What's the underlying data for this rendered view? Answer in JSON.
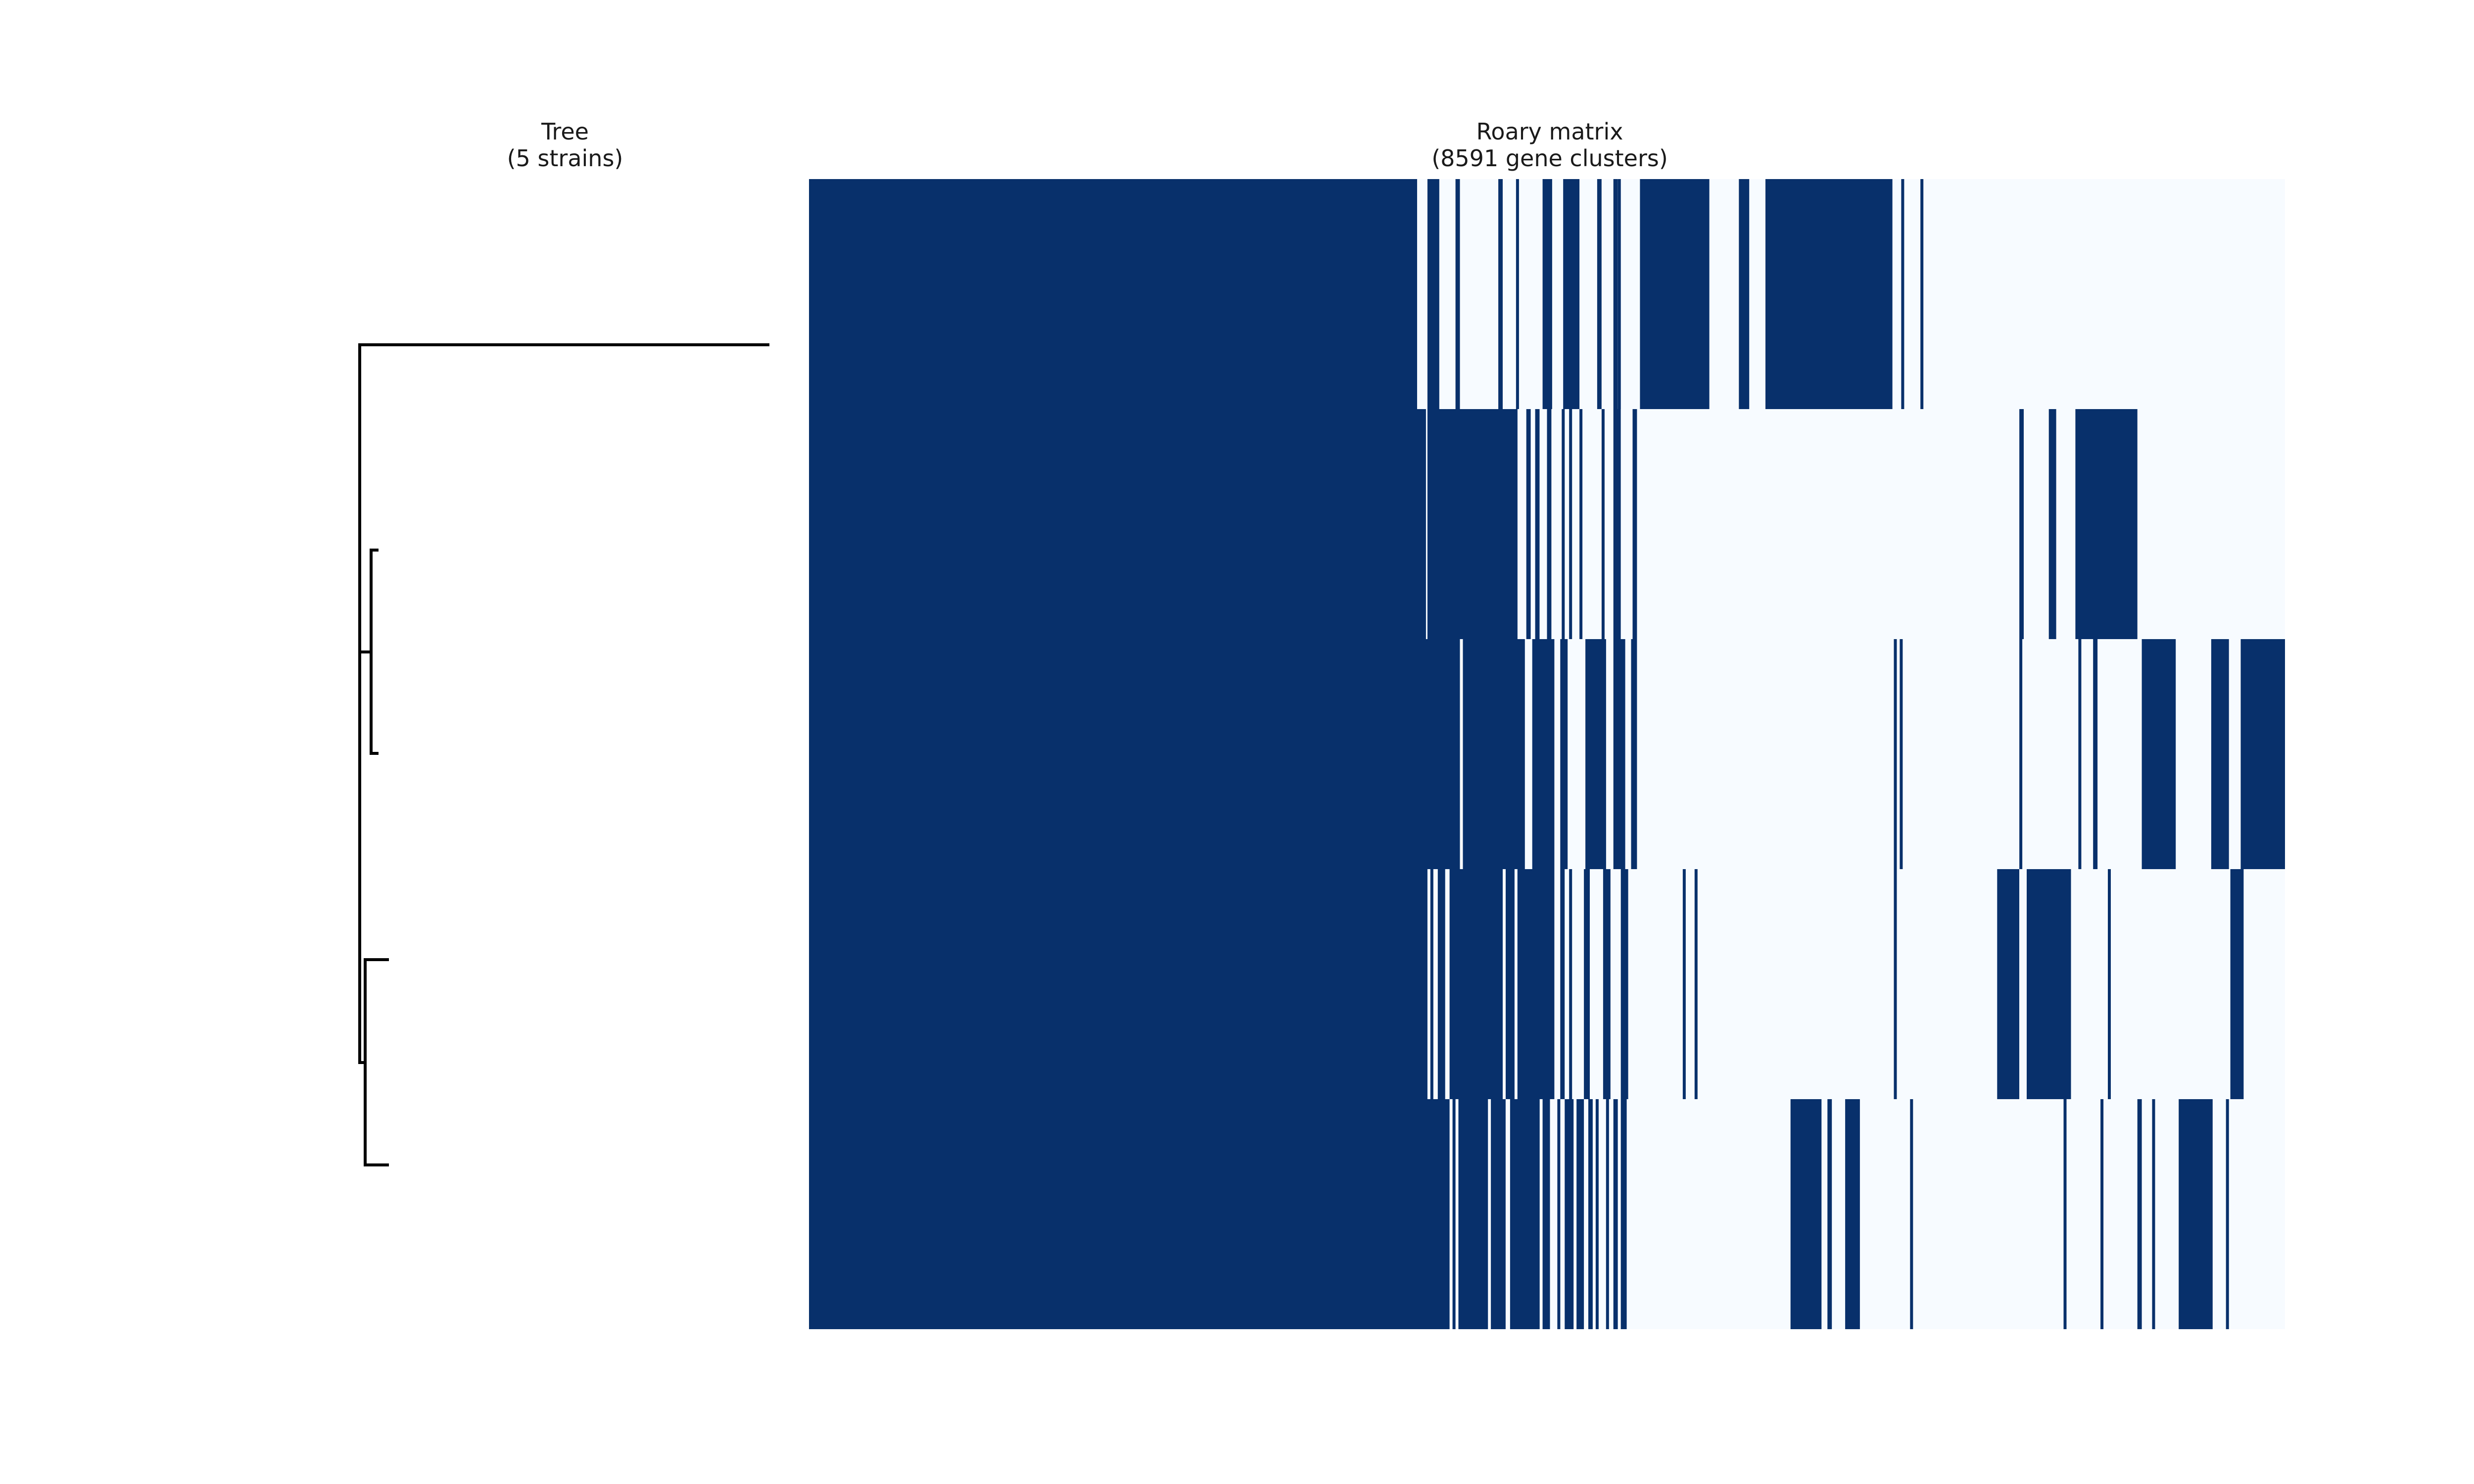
{
  "tree_panel": {
    "title_line1": "Tree",
    "title_line2": "(5 strains)"
  },
  "matrix_panel": {
    "title_line1": "Roary matrix",
    "title_line2": "(8591 gene clusters)"
  },
  "chart_data": [
    {
      "type": "dendrogram",
      "leaves": 5,
      "topology": "((leaf1),((leaf2,leaf3),(leaf4,leaf5)))",
      "line_color": "#000000"
    },
    {
      "type": "heatmap",
      "rows": 5,
      "columns": 8591,
      "colors": {
        "present": "#08306b",
        "absent": "#f7fbff"
      },
      "core_fraction": 0.412,
      "presence_blocks": [
        [
          [
            0.0,
            0.412
          ],
          [
            0.419,
            0.427
          ],
          [
            0.438,
            0.441
          ],
          [
            0.467,
            0.47
          ],
          [
            0.479,
            0.481
          ],
          [
            0.497,
            0.5
          ],
          [
            0.511,
            0.515
          ],
          [
            0.534,
            0.537
          ],
          [
            0.548,
            0.55
          ],
          [
            0.563,
            0.61
          ],
          [
            0.691,
            0.734
          ],
          [
            0.648,
            0.668
          ],
          [
            0.691,
            0.693
          ],
          [
            0.652,
            0.656
          ],
          [
            0.74,
            0.742
          ],
          [
            0.753,
            0.755
          ],
          [
            0.63,
            0.637
          ],
          [
            0.653,
            0.7
          ],
          [
            0.603,
            0.607
          ],
          [
            0.5,
            0.5035
          ],
          [
            0.511,
            0.522
          ],
          [
            0.545,
            0.548
          ]
        ],
        [
          [
            0.0,
            0.418
          ],
          [
            0.419,
            0.48
          ],
          [
            0.486,
            0.489
          ],
          [
            0.492,
            0.495
          ],
          [
            0.51,
            0.512
          ],
          [
            0.522,
            0.524
          ],
          [
            0.537,
            0.539
          ],
          [
            0.545,
            0.55
          ],
          [
            0.558,
            0.561
          ],
          [
            0.82,
            0.823
          ],
          [
            0.858,
            0.9
          ],
          [
            0.84,
            0.845
          ],
          [
            0.47,
            0.472
          ],
          [
            0.5,
            0.503
          ],
          [
            0.515,
            0.517
          ]
        ],
        [
          [
            0.0,
            0.441
          ],
          [
            0.443,
            0.485
          ],
          [
            0.49,
            0.505
          ],
          [
            0.509,
            0.514
          ],
          [
            0.526,
            0.54
          ],
          [
            0.545,
            0.553
          ],
          [
            0.557,
            0.561
          ],
          [
            0.735,
            0.737
          ],
          [
            0.739,
            0.741
          ],
          [
            0.903,
            0.926
          ],
          [
            0.95,
            0.962
          ],
          [
            0.97,
            1.0
          ],
          [
            0.46,
            0.462
          ],
          [
            0.531,
            0.533
          ],
          [
            0.82,
            0.822
          ],
          [
            0.86,
            0.862
          ],
          [
            0.87,
            0.873
          ]
        ],
        [
          [
            0.0,
            0.419
          ],
          [
            0.421,
            0.423
          ],
          [
            0.426,
            0.431
          ],
          [
            0.434,
            0.47
          ],
          [
            0.472,
            0.478
          ],
          [
            0.481,
            0.505
          ],
          [
            0.509,
            0.512
          ],
          [
            0.515,
            0.517
          ],
          [
            0.525,
            0.529
          ],
          [
            0.538,
            0.543
          ],
          [
            0.55,
            0.555
          ],
          [
            0.805,
            0.82
          ],
          [
            0.825,
            0.855
          ],
          [
            0.963,
            0.972
          ],
          [
            0.735,
            0.737
          ],
          [
            0.592,
            0.594
          ],
          [
            0.6,
            0.602
          ],
          [
            0.88,
            0.882
          ],
          [
            0.48,
            0.482
          ],
          [
            0.54,
            0.541
          ]
        ],
        [
          [
            0.0,
            0.434
          ],
          [
            0.436,
            0.438
          ],
          [
            0.44,
            0.46
          ],
          [
            0.462,
            0.472
          ],
          [
            0.475,
            0.495
          ],
          [
            0.497,
            0.502
          ],
          [
            0.507,
            0.509
          ],
          [
            0.512,
            0.518
          ],
          [
            0.52,
            0.525
          ],
          [
            0.528,
            0.531
          ],
          [
            0.533,
            0.535
          ],
          [
            0.54,
            0.542
          ],
          [
            0.545,
            0.548
          ],
          [
            0.552,
            0.554
          ],
          [
            0.665,
            0.686
          ],
          [
            0.69,
            0.693
          ],
          [
            0.702,
            0.712
          ],
          [
            0.928,
            0.951
          ],
          [
            0.9,
            0.903
          ],
          [
            0.91,
            0.912
          ],
          [
            0.746,
            0.748
          ],
          [
            0.85,
            0.852
          ],
          [
            0.875,
            0.877
          ],
          [
            0.493,
            0.495
          ],
          [
            0.55,
            0.553
          ],
          [
            0.96,
            0.962
          ]
        ]
      ]
    }
  ]
}
